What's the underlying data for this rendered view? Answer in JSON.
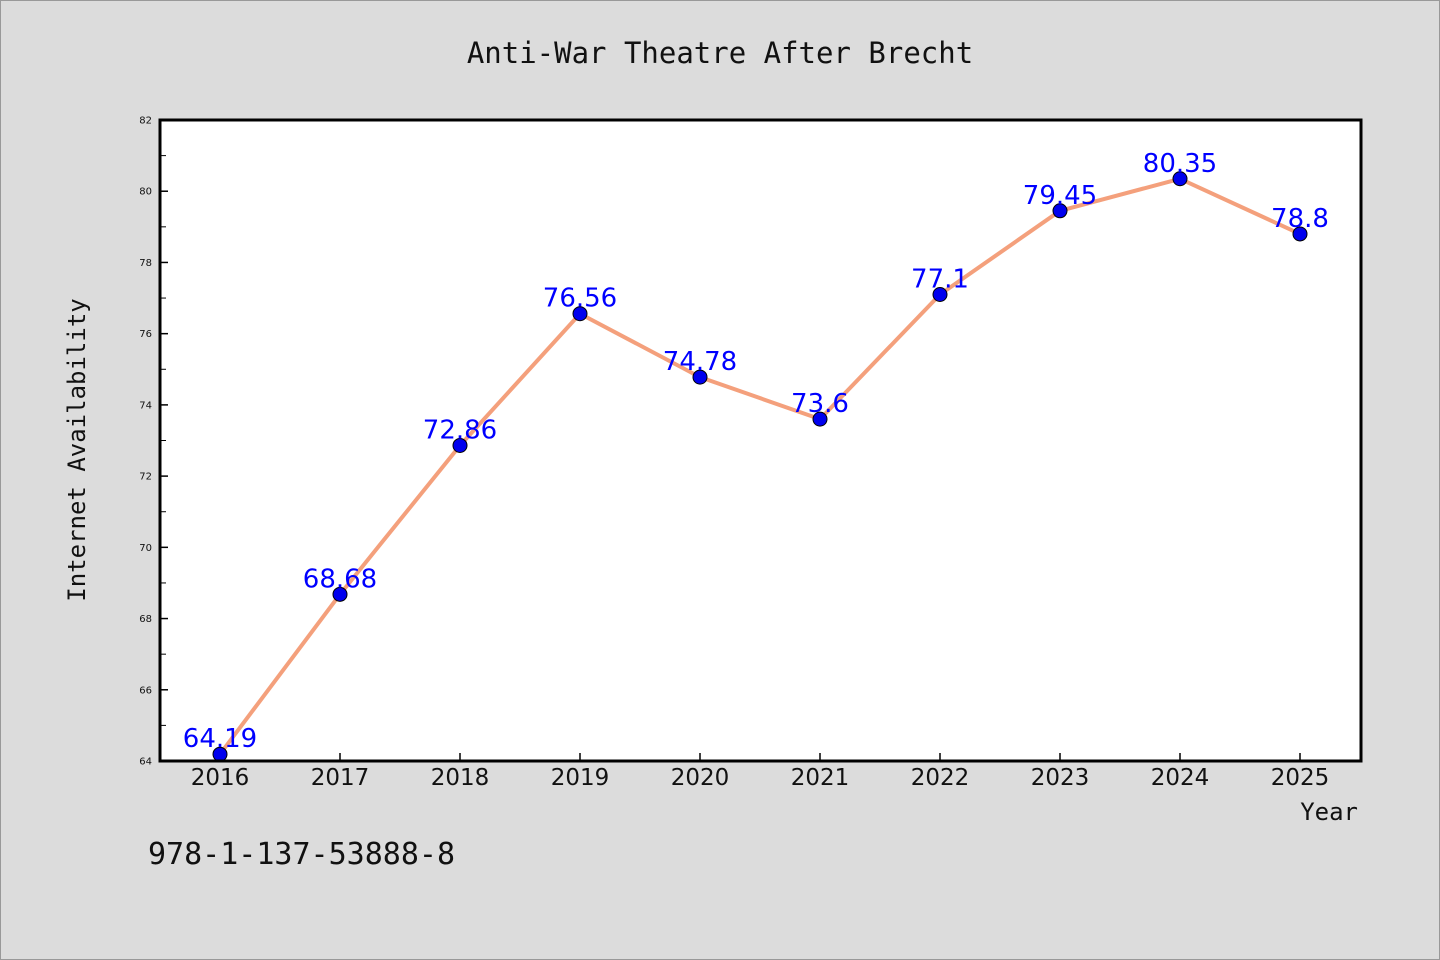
{
  "chart_data": {
    "type": "line",
    "title": "Anti-War Theatre After Brecht",
    "xlabel": "Year",
    "ylabel": "Internet Availability",
    "categories": [
      "2016",
      "2017",
      "2018",
      "2019",
      "2020",
      "2021",
      "2022",
      "2023",
      "2024",
      "2025"
    ],
    "series": [
      {
        "values": [
          64.19,
          68.68,
          72.86,
          76.56,
          74.78,
          73.6,
          77.1,
          79.45,
          80.35,
          78.8
        ]
      }
    ],
    "data_labels": [
      "64.19",
      "68.68",
      "72.86",
      "76.56",
      "74.78",
      "73.6",
      "77.1",
      "79.45",
      "80.35",
      "78.8"
    ],
    "ylim": [
      64,
      82
    ],
    "yticks": [
      64,
      66,
      68,
      70,
      72,
      74,
      76,
      78,
      80,
      82
    ],
    "grid": false,
    "colors": {
      "line": "#f4a07c",
      "marker": "#0000ee",
      "label": "#0000ff",
      "page_background": "#dcdcdc",
      "plot_background": "#ffffff"
    }
  },
  "footer": {
    "code": "978-1-137-53888-8"
  }
}
